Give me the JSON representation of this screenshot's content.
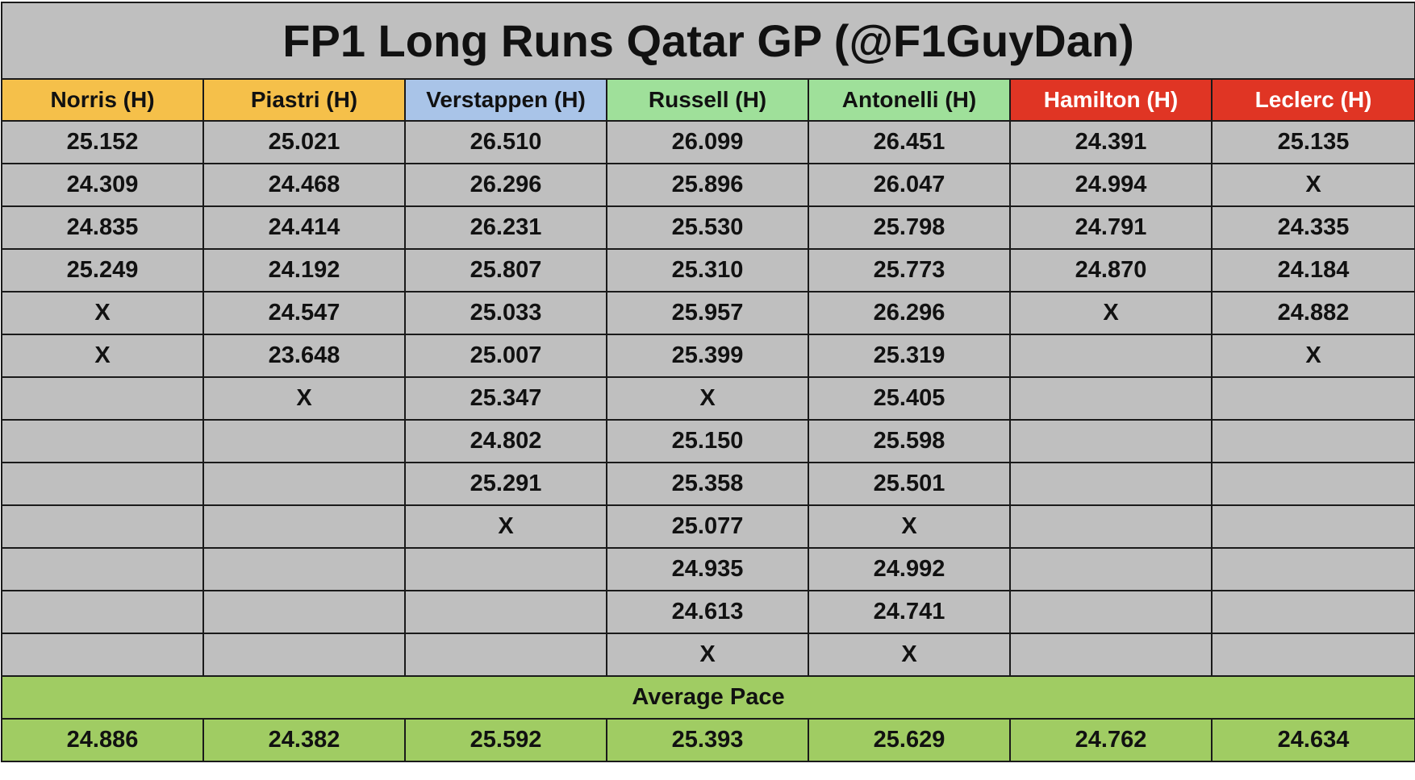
{
  "title": "FP1 Long Runs Qatar GP (@F1GuyDan)",
  "colors": {
    "cell_background": "#bfbfbf",
    "mclaren": "#f5c04a",
    "red_bull": "#a9c4e8",
    "mercedes": "#9fe09a",
    "ferrari": "#e03524",
    "average": "#a0cc63",
    "text": "#111111",
    "text_on_ferrari": "#ffffff"
  },
  "drivers": [
    {
      "label": "Norris (H)",
      "color": "mclaren"
    },
    {
      "label": "Piastri (H)",
      "color": "mclaren"
    },
    {
      "label": "Verstappen (H)",
      "color": "red_bull"
    },
    {
      "label": "Russell (H)",
      "color": "mercedes"
    },
    {
      "label": "Antonelli (H)",
      "color": "mercedes"
    },
    {
      "label": "Hamilton (H)",
      "color": "ferrari"
    },
    {
      "label": "Leclerc (H)",
      "color": "ferrari"
    }
  ],
  "laps": [
    [
      "25.152",
      "25.021",
      "26.510",
      "26.099",
      "26.451",
      "24.391",
      "25.135"
    ],
    [
      "24.309",
      "24.468",
      "26.296",
      "25.896",
      "26.047",
      "24.994",
      "X"
    ],
    [
      "24.835",
      "24.414",
      "26.231",
      "25.530",
      "25.798",
      "24.791",
      "24.335"
    ],
    [
      "25.249",
      "24.192",
      "25.807",
      "25.310",
      "25.773",
      "24.870",
      "24.184"
    ],
    [
      "X",
      "24.547",
      "25.033",
      "25.957",
      "26.296",
      "X",
      "24.882"
    ],
    [
      "X",
      "23.648",
      "25.007",
      "25.399",
      "25.319",
      "",
      "X"
    ],
    [
      "",
      "X",
      "25.347",
      "X",
      "25.405",
      "",
      ""
    ],
    [
      "",
      "",
      "24.802",
      "25.150",
      "25.598",
      "",
      ""
    ],
    [
      "",
      "",
      "25.291",
      "25.358",
      "25.501",
      "",
      ""
    ],
    [
      "",
      "",
      "X",
      "25.077",
      "X",
      "",
      ""
    ],
    [
      "",
      "",
      "",
      "24.935",
      "24.992",
      "",
      ""
    ],
    [
      "",
      "",
      "",
      "24.613",
      "24.741",
      "",
      ""
    ],
    [
      "",
      "",
      "",
      "X",
      "X",
      "",
      ""
    ]
  ],
  "average_label": "Average Pace",
  "averages": [
    "24.886",
    "24.382",
    "25.592",
    "25.393",
    "25.629",
    "24.762",
    "24.634"
  ]
}
